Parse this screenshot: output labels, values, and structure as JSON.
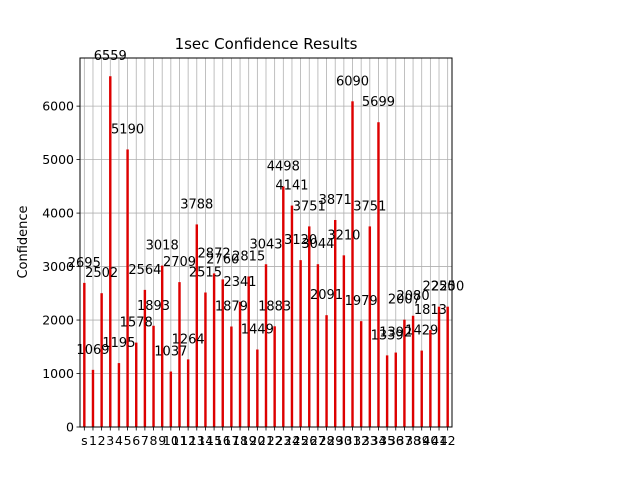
{
  "chart_data": {
    "type": "bar",
    "title": "1sec Confidence Results",
    "xlabel": "",
    "ylabel": "Confidence",
    "ylim": [
      0,
      6900
    ],
    "yticks": [
      0,
      1000,
      2000,
      3000,
      4000,
      5000,
      6000
    ],
    "grid": true,
    "bar_color": "#dd0000",
    "categories": [
      "s",
      "1",
      "2",
      "3",
      "4",
      "5",
      "6",
      "7",
      "8",
      "9",
      "10",
      "11",
      "12",
      "13",
      "14",
      "15",
      "16",
      "17",
      "18",
      "19",
      "20",
      "21",
      "22",
      "23",
      "24",
      "25",
      "26",
      "27",
      "28",
      "29",
      "30",
      "31",
      "32",
      "33",
      "34",
      "35",
      "36",
      "37",
      "38",
      "39",
      "40",
      "41",
      "42"
    ],
    "values": [
      2695,
      1069,
      2502,
      6559,
      1195,
      5190,
      1578,
      2564,
      1893,
      3018,
      1037,
      2709,
      1264,
      3788,
      2515,
      2872,
      2760,
      1879,
      2341,
      2815,
      1449,
      3043,
      1883,
      4498,
      4141,
      3120,
      3751,
      3044,
      2091,
      3871,
      3210,
      6090,
      1979,
      3751,
      5699,
      1339,
      1392,
      2007,
      2080,
      1429,
      1813,
      2250,
      2250
    ]
  }
}
